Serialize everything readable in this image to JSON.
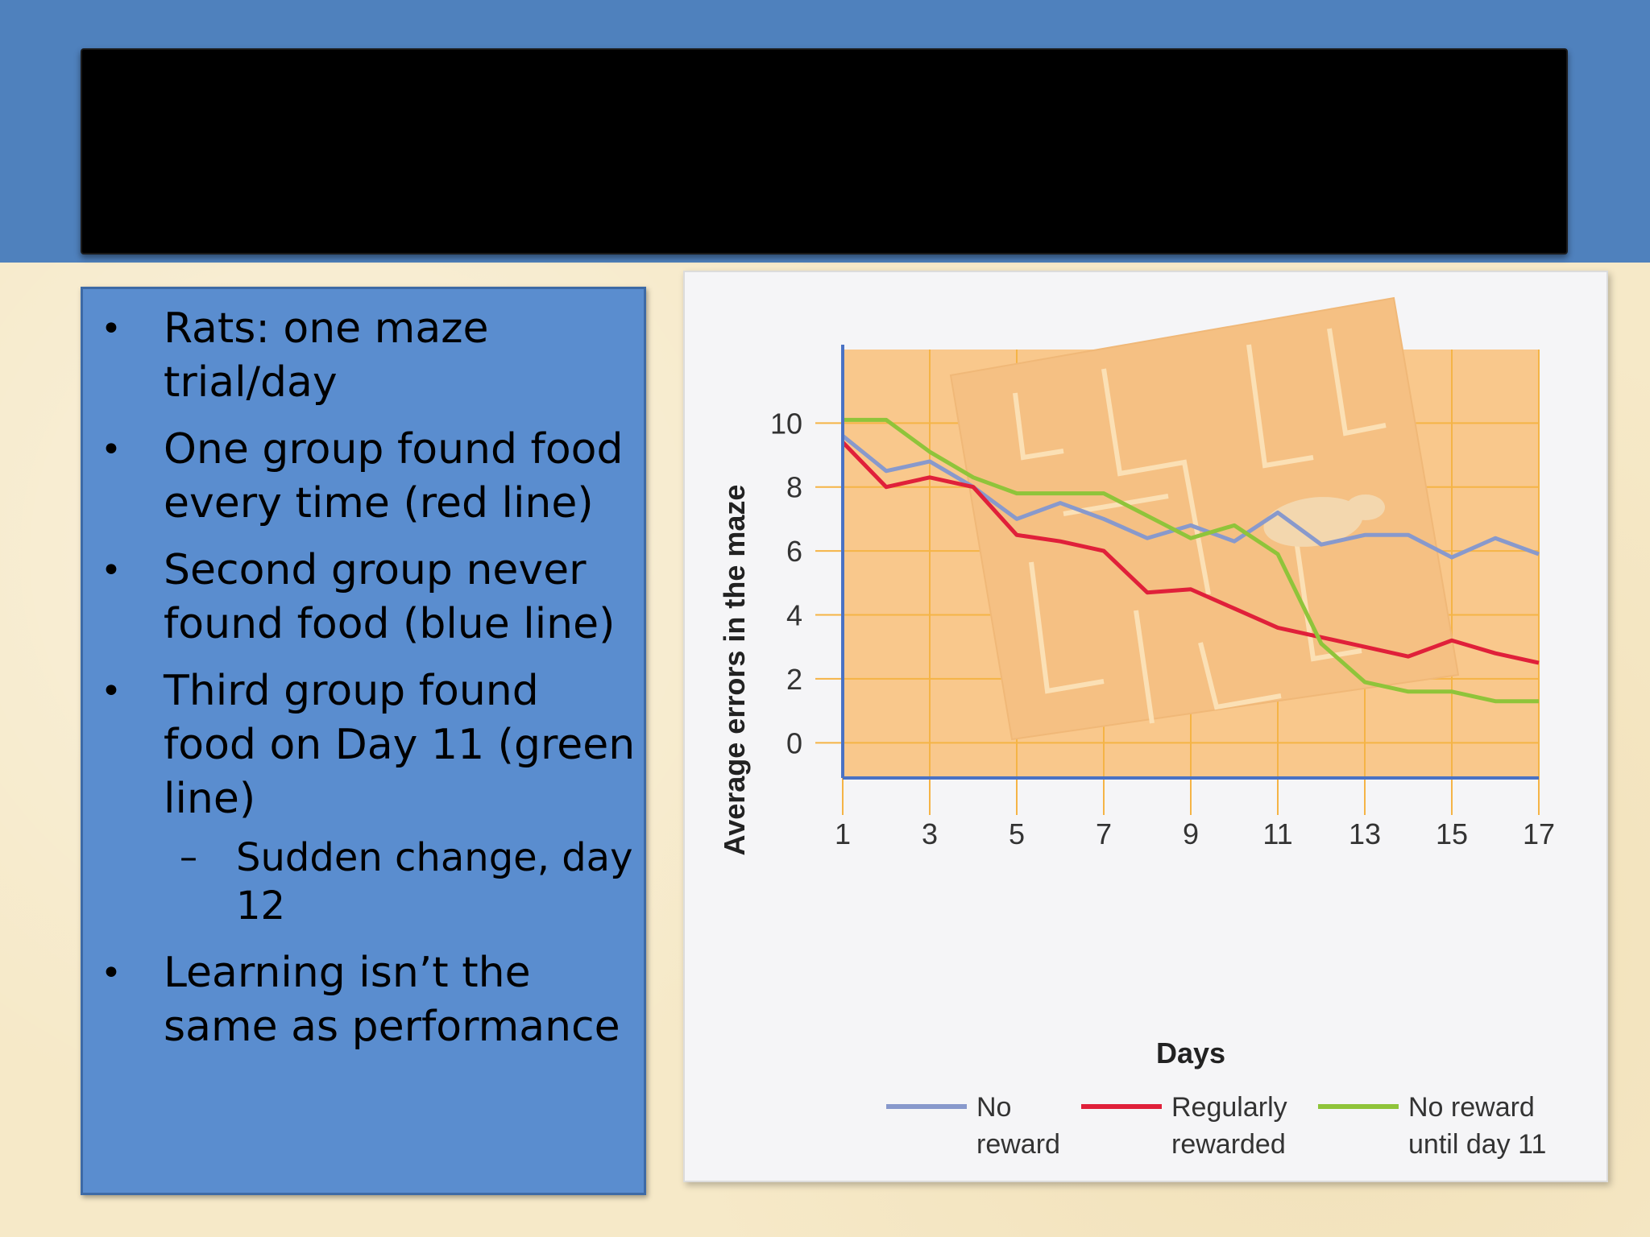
{
  "slide": {
    "title": "",
    "bullets": [
      {
        "level": 1,
        "text": "Rats: one maze trial/day"
      },
      {
        "level": 1,
        "text": "One group found food every time (red line)"
      },
      {
        "level": 1,
        "text": "Second group never found food (blue line)"
      },
      {
        "level": 1,
        "text": "Third group found food on Day 11 (green line)"
      },
      {
        "level": 2,
        "text": "Sudden change, day 12"
      },
      {
        "level": 1,
        "text": "Learning isn’t the same as performance"
      }
    ]
  },
  "colors": {
    "top_band": "#4f81bd",
    "text_box": "#5a8dcf",
    "plot_bg": "#f9c88c",
    "maze": "#f5c083",
    "no_reward": "#8899cc",
    "regularly_rewarded": "#e0203a",
    "reward_day11": "#8fc43a"
  },
  "chart_data": {
    "type": "line",
    "title": "",
    "xlabel": "Days",
    "ylabel": "Average errors in the maze",
    "x_ticks": [
      1,
      3,
      5,
      7,
      9,
      11,
      13,
      15,
      17
    ],
    "y_ticks": [
      0,
      2,
      4,
      6,
      8,
      10
    ],
    "xlim": [
      1,
      17
    ],
    "ylim": [
      -1.1,
      12.3
    ],
    "grid": true,
    "legend_position": "bottom",
    "series": [
      {
        "name": "No reward",
        "color": "#8899cc",
        "x": [
          1,
          2,
          3,
          4,
          5,
          6,
          7,
          8,
          9,
          10,
          11,
          12,
          13,
          14,
          15,
          16,
          17
        ],
        "y": [
          9.6,
          8.5,
          8.8,
          8.0,
          7.0,
          7.5,
          7.0,
          6.4,
          6.8,
          6.3,
          7.2,
          6.2,
          6.5,
          6.5,
          5.8,
          6.4,
          5.9
        ]
      },
      {
        "name": "Regularly rewarded",
        "color": "#e0203a",
        "x": [
          1,
          2,
          3,
          4,
          5,
          6,
          7,
          8,
          9,
          10,
          11,
          12,
          13,
          14,
          15,
          16,
          17
        ],
        "y": [
          9.4,
          8.0,
          8.3,
          8.0,
          6.5,
          6.3,
          6.0,
          4.7,
          4.8,
          4.2,
          3.6,
          3.3,
          3.0,
          2.7,
          3.2,
          2.8,
          2.5
        ]
      },
      {
        "name": "No reward until day 11",
        "color": "#8fc43a",
        "x": [
          1,
          2,
          3,
          4,
          5,
          6,
          7,
          8,
          9,
          10,
          11,
          12,
          13,
          14,
          15,
          16,
          17
        ],
        "y": [
          10.1,
          10.1,
          9.1,
          8.3,
          7.8,
          7.8,
          7.8,
          7.1,
          6.4,
          6.8,
          5.9,
          3.1,
          1.9,
          1.6,
          1.6,
          1.3,
          1.3
        ]
      }
    ],
    "legend": [
      {
        "line1": "No",
        "line2": "reward"
      },
      {
        "line1": "Regularly",
        "line2": "rewarded"
      },
      {
        "line1": "No reward",
        "line2": "until day 11"
      }
    ]
  }
}
